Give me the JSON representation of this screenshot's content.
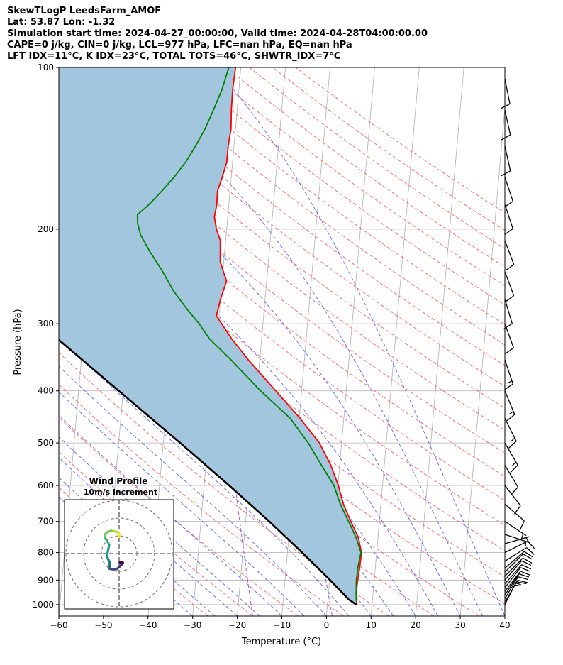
{
  "header": {
    "title": "SkewTLogP LeedsFarm_AMOF",
    "latlon": "Lat: 53.87   Lon: -1.32",
    "times": "Simulation start time: 2024-04-27_00:00:00, Valid time: 2024-04-28T04:00:00.00",
    "indices1": "CAPE=0 j/kg, CIN=0 j/kg, LCL=977 hPa, LFC=nan hPa, EQ=nan hPa",
    "indices2": "LFT IDX=11°C, K IDX=23°C, TOTAL TOTS=46°C, SHWTR_IDX=7°C"
  },
  "chart_data": [
    {
      "type": "line",
      "xlabel": "Temperature (°C)",
      "ylabel": "Pressure (hPa)",
      "xlim": [
        -60,
        40
      ],
      "ylim": [
        1050,
        100
      ],
      "y_scale": "log",
      "skew": true,
      "x_ticks": [
        -60,
        -50,
        -40,
        -30,
        -20,
        -10,
        0,
        10,
        20,
        30,
        40
      ],
      "y_ticks": [
        100,
        200,
        300,
        400,
        500,
        600,
        700,
        800,
        900,
        1000
      ],
      "grid": true,
      "colors": {
        "temperature": "#ff0000",
        "dewpoint": "#008000",
        "parcel": "#000000",
        "shading": "#a3c6df",
        "dry_adiabats": "#ff5555",
        "moist_adiabats": "#3344ff",
        "mixing_ratio": "#9944cc"
      },
      "series": [
        {
          "key": "temperature",
          "points": [
            [
              1000,
              6.5
            ],
            [
              975,
              6.5
            ],
            [
              950,
              6.2
            ],
            [
              900,
              6.3
            ],
            [
              850,
              6.5
            ],
            [
              800,
              6.6
            ],
            [
              750,
              5.6
            ],
            [
              700,
              3.6
            ],
            [
              650,
              1.6
            ],
            [
              600,
              0.1
            ],
            [
              550,
              -2.0
            ],
            [
              500,
              -5.0
            ],
            [
              450,
              -9.8
            ],
            [
              400,
              -15.8
            ],
            [
              350,
              -22.6
            ],
            [
              320,
              -26.7
            ],
            [
              290,
              -30.6
            ],
            [
              270,
              -30.0
            ],
            [
              250,
              -29.0
            ],
            [
              230,
              -30.8
            ],
            [
              210,
              -31.2
            ],
            [
              200,
              -32.3
            ],
            [
              190,
              -33.0
            ],
            [
              180,
              -32.7
            ],
            [
              170,
              -32.8
            ],
            [
              160,
              -32.0
            ],
            [
              150,
              -31.3
            ],
            [
              140,
              -31.3
            ],
            [
              130,
              -31.0
            ],
            [
              120,
              -31.3
            ],
            [
              110,
              -31.4
            ],
            [
              100,
              -31.2
            ]
          ]
        },
        {
          "key": "dewpoint",
          "points": [
            [
              985,
              6.4
            ],
            [
              950,
              6.2
            ],
            [
              900,
              6.0
            ],
            [
              850,
              6.1
            ],
            [
              800,
              6.5
            ],
            [
              750,
              5.1
            ],
            [
              700,
              3.1
            ],
            [
              650,
              0.9
            ],
            [
              600,
              -0.9
            ],
            [
              550,
              -4.1
            ],
            [
              500,
              -7.5
            ],
            [
              450,
              -12.0
            ],
            [
              400,
              -19.2
            ],
            [
              350,
              -26.5
            ],
            [
              320,
              -31.7
            ],
            [
              300,
              -34.3
            ],
            [
              280,
              -37.6
            ],
            [
              260,
              -40.8
            ],
            [
              240,
              -43.5
            ],
            [
              220,
              -46.8
            ],
            [
              205,
              -49.2
            ],
            [
              195,
              -50.1
            ],
            [
              188,
              -50.3
            ],
            [
              180,
              -47.9
            ],
            [
              170,
              -45.3
            ],
            [
              160,
              -42.8
            ],
            [
              150,
              -40.5
            ],
            [
              140,
              -38.6
            ],
            [
              130,
              -36.8
            ],
            [
              120,
              -35.3
            ],
            [
              110,
              -33.8
            ],
            [
              100,
              -32.7
            ]
          ]
        },
        {
          "key": "parcel",
          "points": [
            [
              1000,
              6.5
            ],
            [
              977,
              4.6
            ],
            [
              900,
              0.1
            ],
            [
              800,
              -6.7
            ],
            [
              700,
              -14.7
            ],
            [
              600,
              -24.4
            ],
            [
              500,
              -36.2
            ],
            [
              400,
              -51.0
            ],
            [
              300,
              -70.0
            ],
            [
              250,
              -81.8
            ],
            [
              200,
              -96.2
            ],
            [
              150,
              -114.0
            ],
            [
              100,
              -136.8
            ]
          ]
        }
      ]
    },
    {
      "type": "line",
      "title": "Wind Profile",
      "subtitle": "10m/s increment",
      "ring_spacing": 10,
      "colormap": "viridis",
      "series": [
        {
          "key": "hodograph",
          "points": [
            [
              0.1,
              9.4
            ],
            [
              0.0,
              11.4
            ],
            [
              -0.5,
              12.0
            ],
            [
              -2.3,
              12.5
            ],
            [
              -4.5,
              12.9
            ],
            [
              -6.5,
              12.2
            ],
            [
              -7.9,
              10.9
            ],
            [
              -7.8,
              8.6
            ],
            [
              -6.4,
              6.5
            ],
            [
              -5.6,
              4.8
            ],
            [
              -6.1,
              2.5
            ],
            [
              -6.6,
              0.1
            ],
            [
              -6.7,
              -2.0
            ],
            [
              -6.0,
              -3.6
            ],
            [
              -5.3,
              -4.7
            ],
            [
              -5.4,
              -6.4
            ],
            [
              -5.3,
              -7.7
            ],
            [
              -5.5,
              -8.5
            ],
            [
              -3.4,
              -8.9
            ],
            [
              -1.3,
              -8.7
            ],
            [
              0.2,
              -7.4
            ],
            [
              1.2,
              -6.4
            ],
            [
              2.1,
              -5.1
            ],
            [
              1.3,
              -4.8
            ],
            [
              0.3,
              -5.0
            ]
          ]
        }
      ]
    }
  ],
  "wind_barbs": [
    {
      "p": 1000,
      "u": -7,
      "v": -14
    },
    {
      "p": 990,
      "u": -7,
      "v": -12
    },
    {
      "p": 975,
      "u": -6,
      "v": -10
    },
    {
      "p": 960,
      "u": -6,
      "v": -9
    },
    {
      "p": 945,
      "u": -7,
      "v": -9
    },
    {
      "p": 930,
      "u": -7,
      "v": -9
    },
    {
      "p": 915,
      "u": -7,
      "v": -8
    },
    {
      "p": 900,
      "u": -7,
      "v": -8
    },
    {
      "p": 885,
      "u": -7,
      "v": -7
    },
    {
      "p": 870,
      "u": -7,
      "v": -7
    },
    {
      "p": 855,
      "u": -7,
      "v": -6
    },
    {
      "p": 830,
      "u": -8,
      "v": -5
    },
    {
      "p": 800,
      "u": -8,
      "v": -4
    },
    {
      "p": 770,
      "u": -7,
      "v": -2
    },
    {
      "p": 740,
      "u": -6,
      "v": 2
    },
    {
      "p": 700,
      "u": -6,
      "v": 4
    },
    {
      "p": 650,
      "u": -7,
      "v": 6
    },
    {
      "p": 600,
      "u": -7,
      "v": 9
    },
    {
      "p": 550,
      "u": -6,
      "v": 10
    },
    {
      "p": 500,
      "u": -7,
      "v": 12
    },
    {
      "p": 450,
      "u": -6,
      "v": 12
    },
    {
      "p": 400,
      "u": -5,
      "v": 12
    },
    {
      "p": 350,
      "u": -4,
      "v": 12
    },
    {
      "p": 300,
      "u": -4,
      "v": 11
    },
    {
      "p": 270,
      "u": -3,
      "v": 10
    },
    {
      "p": 240,
      "u": -3,
      "v": 8
    },
    {
      "p": 210,
      "u": -3,
      "v": 8
    },
    {
      "p": 180,
      "u": -3,
      "v": 9
    },
    {
      "p": 160,
      "u": -3,
      "v": 9
    },
    {
      "p": 140,
      "u": -2,
      "v": 9
    },
    {
      "p": 120,
      "u": -2,
      "v": 9
    },
    {
      "p": 105,
      "u": -2,
      "v": 10
    }
  ]
}
